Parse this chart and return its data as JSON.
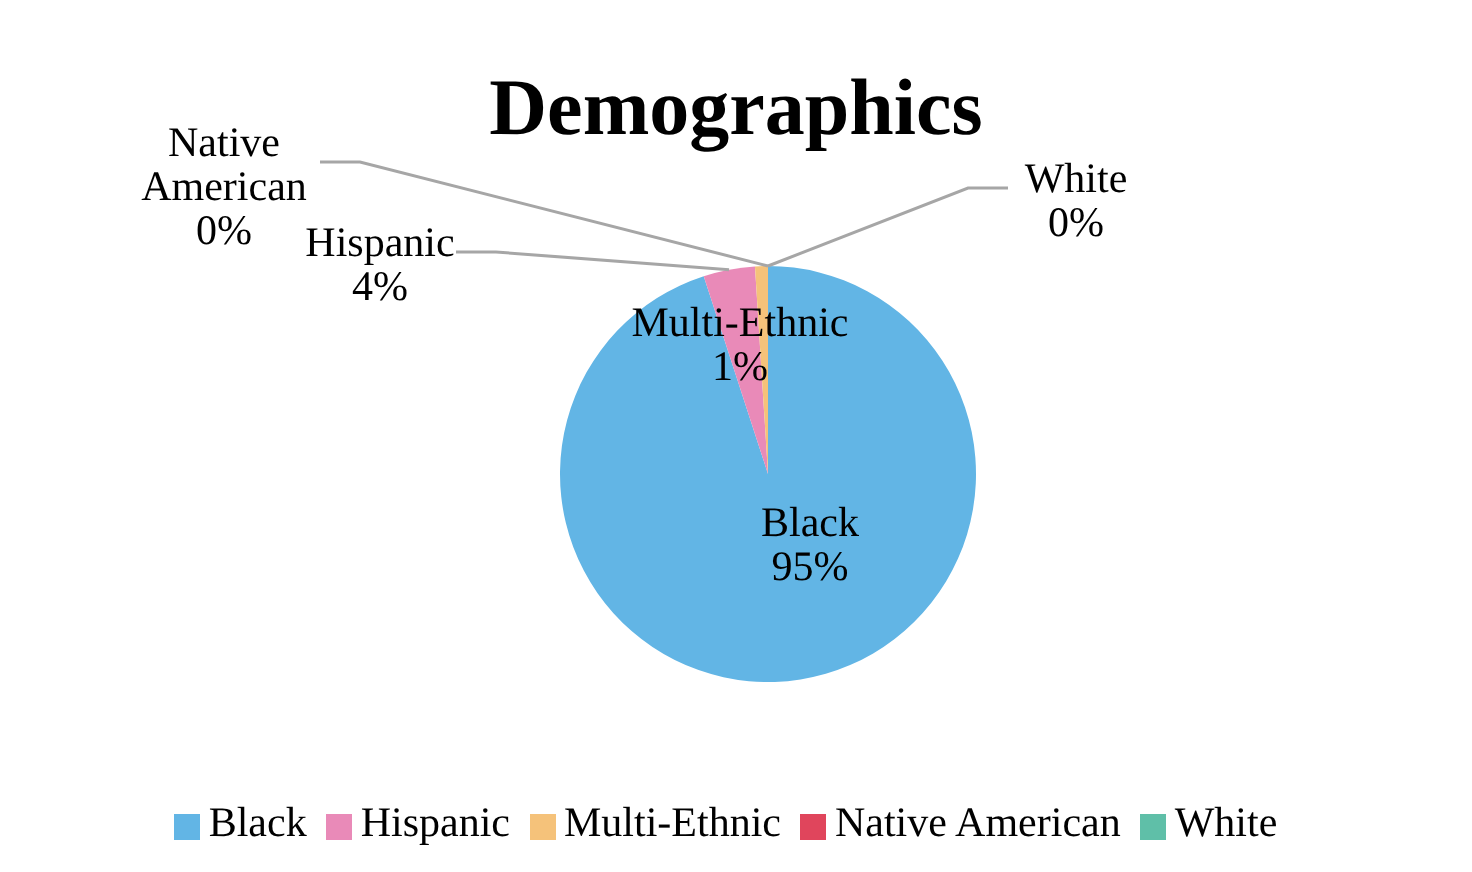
{
  "chart_data": {
    "type": "pie",
    "title": "Demographics",
    "categories": [
      "Black",
      "Hispanic",
      "Multi-Ethnic",
      "Native American",
      "White"
    ],
    "values": [
      95,
      4,
      1,
      0,
      0
    ],
    "colors": [
      "#62b5e5",
      "#e98ab8",
      "#f5c27a",
      "#e0455c",
      "#5fbfa8"
    ],
    "value_labels": [
      "95%",
      "4%",
      "1%",
      "0%",
      "0%"
    ],
    "legend": "bottom"
  }
}
